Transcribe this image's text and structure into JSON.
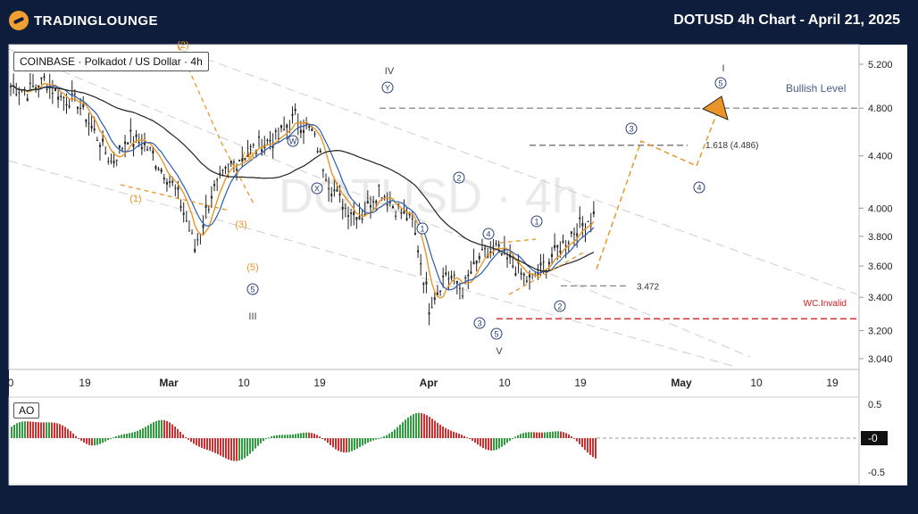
{
  "header": {
    "logo_text": "TRADINGLOUNGE",
    "title": "DOTUSD 4h Chart - April 21, 2025"
  },
  "symbol": {
    "label": "COINBASE · Polkadot / US Dollar · 4h"
  },
  "indicator": {
    "label": "AO",
    "axis_ticks": [
      "0.5",
      "-0",
      "-0.5"
    ]
  },
  "colors": {
    "background": "#0f1d3d",
    "panel": "#ffffff",
    "wave_orange": "#e8962a",
    "wave_label_blue": "#2a3f7a",
    "bullish_line": "#777777",
    "invalid_line": "#d62020",
    "ao_up": "#2e9e3e",
    "ao_down": "#d03030"
  },
  "chart_data": {
    "type": "line",
    "title": "",
    "watermark": "DOTUSD · 4h",
    "y_axis": {
      "scale": "log",
      "ticks": [
        "5.200",
        "4.800",
        "4.400",
        "4.000",
        "3.800",
        "3.600",
        "3.400",
        "3.200",
        "3.040"
      ]
    },
    "x_axis": {
      "ticks": [
        "0",
        "19",
        "Mar",
        "10",
        "19",
        "Apr",
        "10",
        "19",
        "May",
        "10",
        "19"
      ]
    },
    "levels": [
      {
        "name": "Bullish Level",
        "value": 4.8,
        "color": "#777777"
      },
      {
        "name": "1.618 (4.486)",
        "value": 4.486,
        "color": "#555555"
      },
      {
        "name": "3.472",
        "value": 3.472,
        "color": "#777777"
      },
      {
        "name": "WC.Invalid",
        "value": 3.27,
        "color": "#d62020"
      }
    ],
    "wave_labels": [
      {
        "text": "(1)",
        "style": "orange"
      },
      {
        "text": "(2)",
        "style": "orange"
      },
      {
        "text": "(3)",
        "style": "orange"
      },
      {
        "text": "(4)",
        "style": "orange"
      },
      {
        "text": "(5)",
        "style": "orange"
      },
      {
        "text": "5",
        "style": "circle"
      },
      {
        "text": "III",
        "style": "roman"
      },
      {
        "text": "W",
        "style": "circle"
      },
      {
        "text": "X",
        "style": "circle"
      },
      {
        "text": "Y",
        "style": "circle"
      },
      {
        "text": "IV",
        "style": "roman"
      },
      {
        "text": "1",
        "style": "circle"
      },
      {
        "text": "2",
        "style": "circle"
      },
      {
        "text": "4",
        "style": "circle"
      },
      {
        "text": "3",
        "style": "circle"
      },
      {
        "text": "5",
        "style": "circle"
      },
      {
        "text": "V",
        "style": "roman"
      },
      {
        "text": "1",
        "style": "circle"
      },
      {
        "text": "2",
        "style": "circle"
      },
      {
        "text": "3",
        "style": "circle"
      },
      {
        "text": "4",
        "style": "circle"
      },
      {
        "text": "5",
        "style": "circle"
      },
      {
        "text": "I",
        "style": "roman"
      }
    ],
    "projection": {
      "path_values": [
        3.58,
        4.52,
        4.32,
        4.8
      ],
      "labels": [
        "3",
        "4",
        "5"
      ]
    },
    "price_series_approx": [
      5.0,
      4.95,
      5.05,
      4.9,
      4.85,
      4.6,
      4.35,
      4.55,
      4.5,
      4.3,
      4.1,
      3.72,
      4.1,
      4.3,
      4.42,
      4.5,
      4.55,
      4.72,
      4.6,
      4.2,
      4.0,
      3.95,
      4.15,
      4.0,
      3.9,
      3.35,
      3.55,
      3.45,
      3.65,
      3.72,
      3.6,
      3.5,
      3.62,
      3.75,
      3.88,
      3.95
    ]
  }
}
